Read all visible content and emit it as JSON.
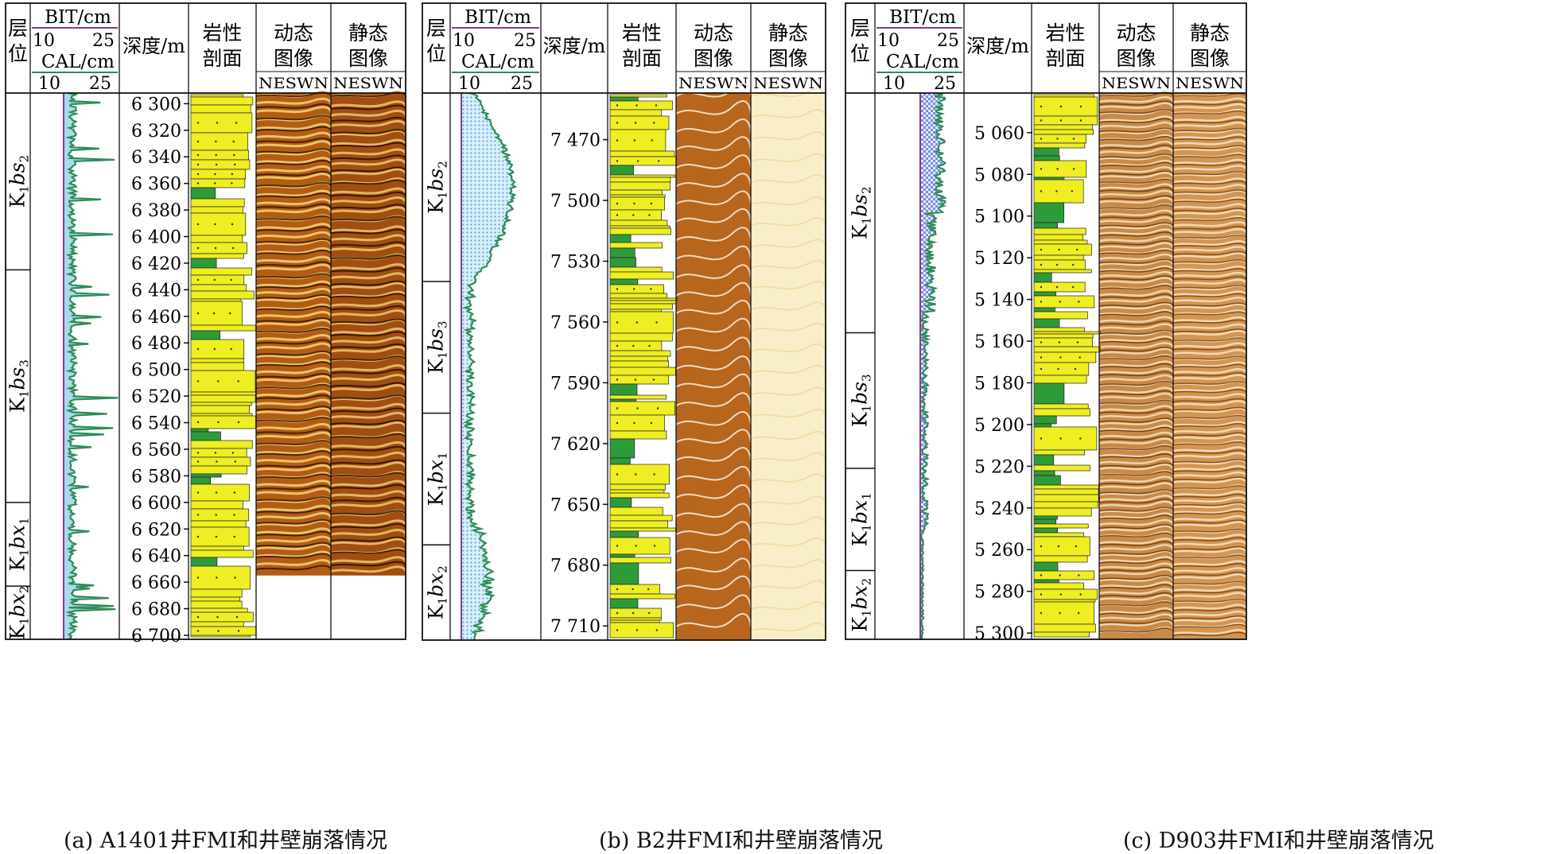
{
  "header_labels": {
    "layer": [
      "层",
      "位"
    ],
    "bit": "BIT/cm",
    "cal": "CAL/cm",
    "scale_min": "10",
    "scale_max": "25",
    "depth": "深度/m",
    "lithology": [
      "岩性",
      "剖面"
    ],
    "dynamic": [
      "动态",
      "图像"
    ],
    "static": [
      "静态",
      "图像"
    ],
    "orientation": "NESWN"
  },
  "panels": [
    {
      "id": "a",
      "caption": "(a) A1401井FMI和井壁崩落情况",
      "depth_min": 6292,
      "depth_max": 6703,
      "depth_ticks": [
        "6 300",
        "6 320",
        "6 340",
        "6 360",
        "6 380",
        "6 400",
        "6 420",
        "6 440",
        "6 460",
        "6 480",
        "6 500",
        "6 520",
        "6 540",
        "6 560",
        "6 580",
        "6 600",
        "6 620",
        "6 640",
        "6 660",
        "6 680",
        "6 700"
      ],
      "image_bottom_depth": 6655,
      "layers": [
        {
          "base": "K",
          "sub1": "1",
          "name": "bs",
          "sub2": "2",
          "top": 6292,
          "bottom": 6425
        },
        {
          "base": "K",
          "sub1": "1",
          "name": "bs",
          "sub2": "3",
          "top": 6425,
          "bottom": 6600
        },
        {
          "base": "K",
          "sub1": "1",
          "name": "bx",
          "sub2": "1",
          "top": 6600,
          "bottom": 6663
        },
        {
          "base": "K",
          "sub1": "1",
          "name": "bx",
          "sub2": "2",
          "top": 6663,
          "bottom": 6703
        }
      ]
    },
    {
      "id": "b",
      "caption": "(b) B2井FMI和井壁崩落情况",
      "depth_min": 7447,
      "depth_max": 7717,
      "depth_ticks": [
        "7 470",
        "7 500",
        "7 530",
        "7 560",
        "7 590",
        "7 620",
        "7 650",
        "7 680",
        "7 710"
      ],
      "image_bottom_depth": 7717,
      "layers": [
        {
          "base": "K",
          "sub1": "1",
          "name": "bs",
          "sub2": "2",
          "top": 7447,
          "bottom": 7540
        },
        {
          "base": "K",
          "sub1": "1",
          "name": "bs",
          "sub2": "3",
          "top": 7540,
          "bottom": 7605
        },
        {
          "base": "K",
          "sub1": "1",
          "name": "bx",
          "sub2": "1",
          "top": 7605,
          "bottom": 7670
        },
        {
          "base": "K",
          "sub1": "1",
          "name": "bx",
          "sub2": "2",
          "top": 7670,
          "bottom": 7717
        }
      ]
    },
    {
      "id": "c",
      "caption": "(c) D903井FMI和井壁崩落情况",
      "depth_min": 5041,
      "depth_max": 5303,
      "depth_ticks": [
        "5 060",
        "5 080",
        "5 100",
        "5 120",
        "5 140",
        "5 160",
        "5 180",
        "5 200",
        "5 220",
        "5 240",
        "5 260",
        "5 280",
        "5 300"
      ],
      "image_bottom_depth": 5303,
      "layers": [
        {
          "base": "K",
          "sub1": "1",
          "name": "bs",
          "sub2": "2",
          "top": 5041,
          "bottom": 5156
        },
        {
          "base": "K",
          "sub1": "1",
          "name": "bs",
          "sub2": "3",
          "top": 5156,
          "bottom": 5221
        },
        {
          "base": "K",
          "sub1": "1",
          "name": "bx",
          "sub2": "1",
          "top": 5221,
          "bottom": 5270
        },
        {
          "base": "K",
          "sub1": "1",
          "name": "bx",
          "sub2": "2",
          "top": 5270,
          "bottom": 5303
        }
      ]
    }
  ],
  "colors": {
    "bit_line": "#8b3a8b",
    "cal_line": "#2e8b57",
    "cal_fill_a": "#a8daf0",
    "cal_fill_b": "#b5e3f3",
    "cal_fill_c": "#b9c6f0",
    "sandstone": "#eeee22",
    "mudstone": "#2e9b3a",
    "dyn_a": "#b25d12",
    "dyn_b": "#b8651d",
    "dyn_c": "#c98a45",
    "stat_a": "#a04f10",
    "stat_b": "#f8eec8",
    "stat_c": "#d39550"
  }
}
